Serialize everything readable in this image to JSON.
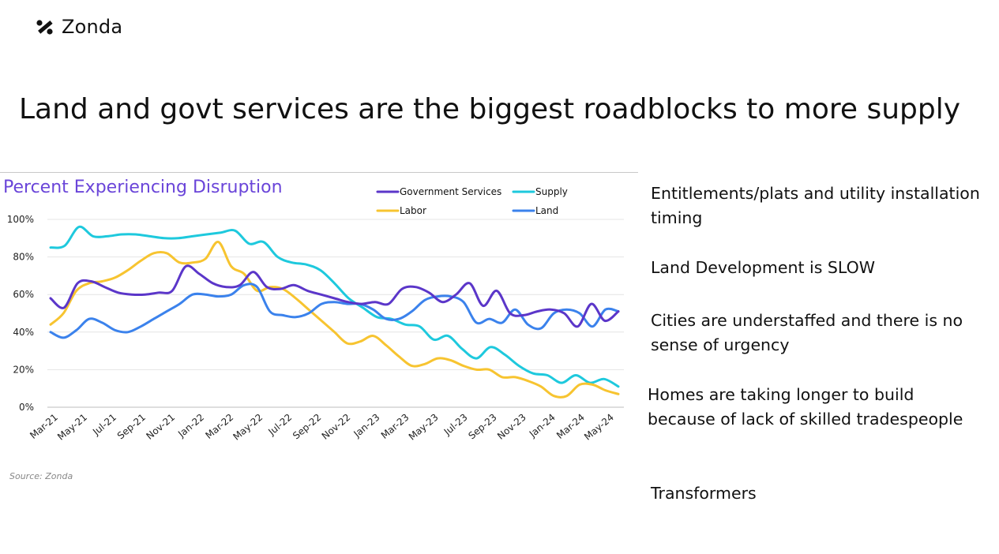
{
  "logo": {
    "text": "Zonda",
    "icon": "zonda-percent-icon"
  },
  "slide": {
    "title": "Land and govt services are the biggest roadblocks to more supply"
  },
  "source": "Source: Zonda",
  "notes": [
    {
      "lines": [
        "Entitlements/plats and utility installation",
        "timing"
      ]
    },
    {
      "lines": [
        "Land Development is SLOW"
      ]
    },
    {
      "lines": [
        "Cities are understaffed and there is no",
        "sense of urgency"
      ]
    },
    {
      "lines": [
        "Homes are taking longer to build",
        "because of lack of skilled tradespeople"
      ]
    },
    {
      "lines": [
        "Transformers"
      ]
    }
  ],
  "chart_data": {
    "type": "line",
    "title": "Percent Experiencing Disruption",
    "x_tick_labels": [
      "Mar-21",
      "May-21",
      "Jul-21",
      "Sep-21",
      "Nov-21",
      "Jan-22",
      "Mar-22",
      "May-22",
      "Jul-22",
      "Sep-22",
      "Nov-22",
      "Jan-23",
      "Mar-23",
      "May-23",
      "Jul-23",
      "Sep-23",
      "Nov-23",
      "Jan-24",
      "Mar-24",
      "May-24"
    ],
    "y_ticks": [
      "0%",
      "20%",
      "40%",
      "60%",
      "80%",
      "100%"
    ],
    "ylim": [
      0,
      100
    ],
    "legend_placement": "top-right",
    "series": [
      {
        "name": "Government Services",
        "color": "#5b36c9",
        "values": [
          58,
          53,
          66,
          67,
          64,
          61,
          60,
          60,
          61,
          62,
          75,
          71,
          66,
          64,
          65,
          72,
          64,
          63,
          65,
          62,
          60,
          58,
          56,
          55,
          56,
          55,
          63,
          64,
          61,
          56,
          60,
          66,
          54,
          62,
          50,
          49,
          51,
          52,
          50,
          43,
          55,
          46,
          51
        ]
      },
      {
        "name": "Supply",
        "color": "#1ec9dd",
        "values": [
          85,
          86,
          96,
          91,
          91,
          92,
          92,
          91,
          90,
          90,
          91,
          92,
          93,
          94,
          87,
          88,
          80,
          77,
          76,
          73,
          66,
          58,
          53,
          48,
          47,
          44,
          43,
          36,
          38,
          31,
          26,
          32,
          28,
          22,
          18,
          17,
          13,
          17,
          13,
          15,
          11
        ]
      },
      {
        "name": "Labor",
        "color": "#f7c430",
        "values": [
          44,
          50,
          62,
          66,
          67,
          69,
          73,
          78,
          82,
          82,
          77,
          77,
          79,
          88,
          75,
          71,
          62,
          64,
          63,
          58,
          52,
          46,
          40,
          34,
          35,
          38,
          33,
          27,
          22,
          23,
          26,
          25,
          22,
          20,
          20,
          16,
          16,
          14,
          11,
          6,
          6,
          12,
          12,
          9,
          7
        ]
      },
      {
        "name": "Land",
        "color": "#3b82ec",
        "values": [
          40,
          37,
          41,
          47,
          45,
          41,
          40,
          43,
          47,
          51,
          55,
          60,
          60,
          59,
          60,
          65,
          64,
          51,
          49,
          48,
          50,
          55,
          56,
          55,
          55,
          52,
          47,
          47,
          51,
          57,
          59,
          59,
          56,
          45,
          47,
          45,
          52,
          44,
          42,
          50,
          52,
          50,
          43,
          52,
          51
        ]
      }
    ]
  }
}
